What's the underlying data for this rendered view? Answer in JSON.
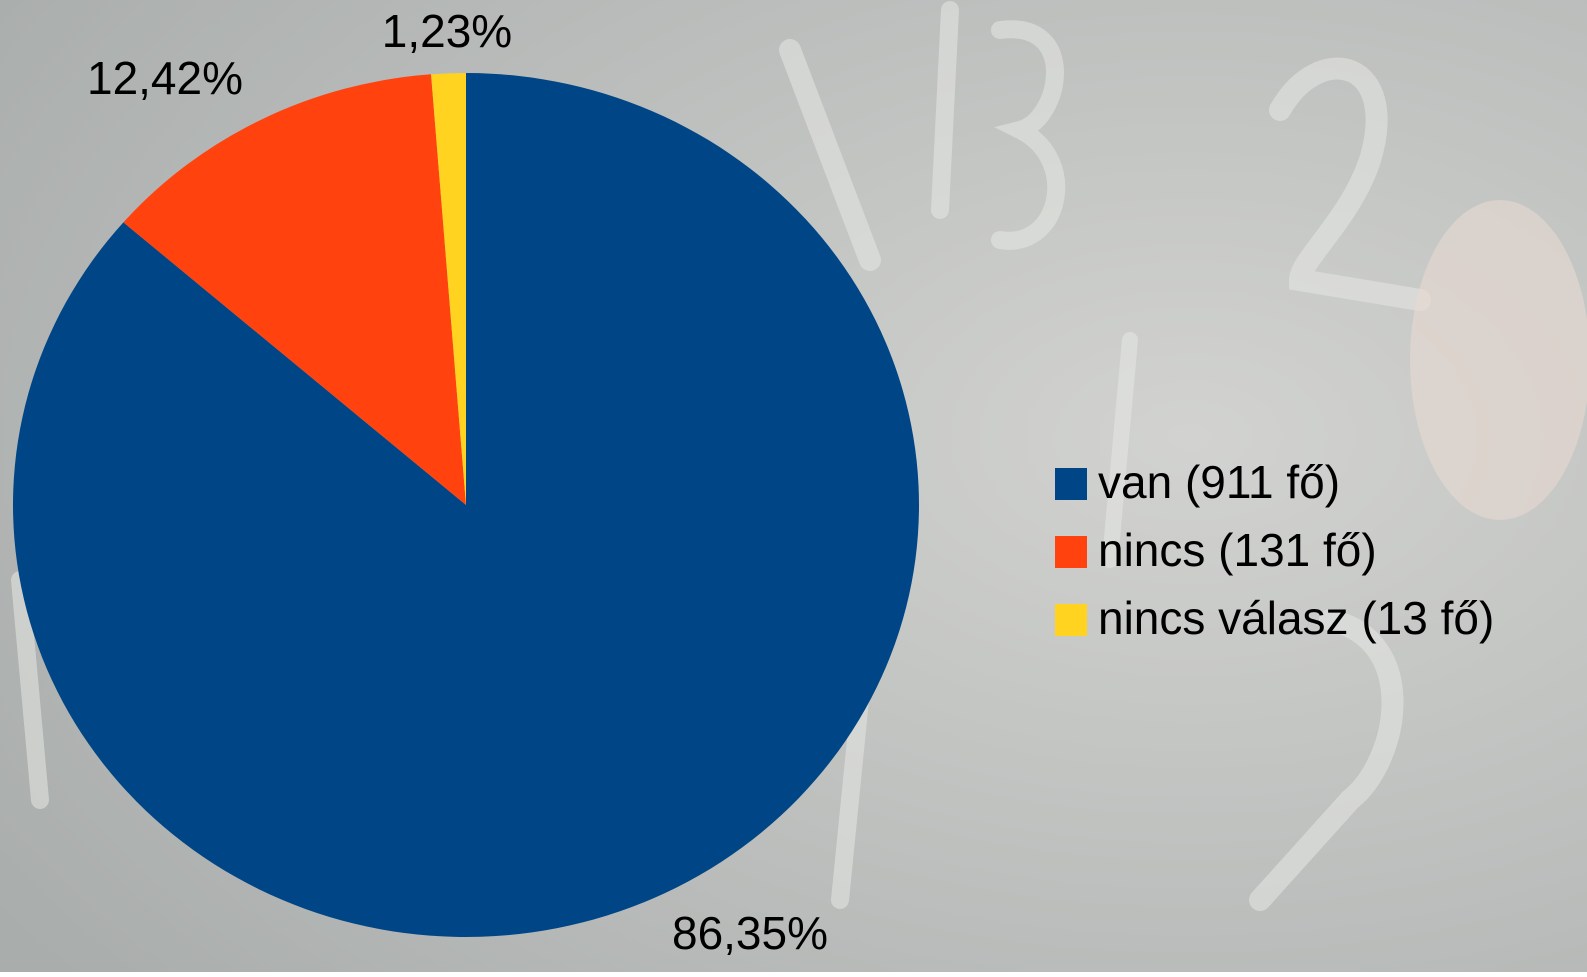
{
  "chart_data": {
    "type": "pie",
    "categories": [
      "van (911 fő)",
      "nincs (131 fő)",
      "nincs válasz (13 fő)"
    ],
    "values": [
      86.35,
      12.42,
      1.23
    ],
    "value_labels": [
      "86,35%",
      "12,42%",
      "1,23%"
    ],
    "colors": [
      "#004586",
      "#ff420e",
      "#ffd320"
    ],
    "legend": "right"
  }
}
